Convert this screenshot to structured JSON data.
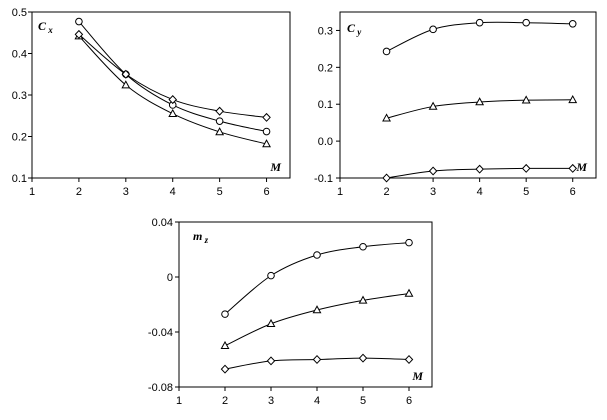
{
  "chart_data": [
    {
      "type": "line",
      "title": "",
      "ylabel": "C",
      "ylabel_sub": "x",
      "xlabel": "M",
      "xlim": [
        1,
        6.5
      ],
      "ylim": [
        0.1,
        0.5
      ],
      "xticks": [
        "1",
        "2",
        "3",
        "4",
        "5",
        "6"
      ],
      "yticks": [
        "0.1",
        "0.2",
        "0.3",
        "0.4",
        "0.5"
      ],
      "grid": false,
      "series": [
        {
          "marker": "circle",
          "x": [
            2,
            3,
            4,
            5,
            6
          ],
          "y": [
            0.477,
            0.35,
            0.276,
            0.237,
            0.212
          ]
        },
        {
          "marker": "triangle",
          "x": [
            2,
            3,
            4,
            5,
            6
          ],
          "y": [
            0.442,
            0.324,
            0.255,
            0.211,
            0.182
          ]
        },
        {
          "marker": "diamond",
          "x": [
            2,
            3,
            4,
            5,
            6
          ],
          "y": [
            0.446,
            0.35,
            0.289,
            0.261,
            0.246
          ]
        }
      ]
    },
    {
      "type": "line",
      "title": "",
      "ylabel": "C",
      "ylabel_sub": "y",
      "xlabel": "M",
      "xlim": [
        1,
        6.5
      ],
      "ylim": [
        -0.1,
        0.35
      ],
      "xticks": [
        "1",
        "2",
        "3",
        "4",
        "5",
        "6"
      ],
      "yticks": [
        "-0.1",
        "0.0",
        "0.1",
        "0.2",
        "0.3"
      ],
      "grid": false,
      "series": [
        {
          "marker": "circle",
          "x": [
            2,
            3,
            4,
            5,
            6
          ],
          "y": [
            0.243,
            0.303,
            0.321,
            0.321,
            0.318
          ]
        },
        {
          "marker": "triangle",
          "x": [
            2,
            3,
            4,
            5,
            6
          ],
          "y": [
            0.062,
            0.094,
            0.106,
            0.111,
            0.112
          ]
        },
        {
          "marker": "diamond",
          "x": [
            2,
            3,
            4,
            5,
            6
          ],
          "y": [
            -0.1,
            -0.081,
            -0.076,
            -0.074,
            -0.074
          ]
        }
      ]
    },
    {
      "type": "line",
      "title": "",
      "ylabel": "m",
      "ylabel_sub": "z",
      "xlabel": "M",
      "xlim": [
        1,
        6.5
      ],
      "ylim": [
        -0.08,
        0.04
      ],
      "xticks": [
        "1",
        "2",
        "3",
        "4",
        "5",
        "6"
      ],
      "yticks": [
        "-0.08",
        "-0.04",
        "0",
        "0.04"
      ],
      "grid": false,
      "series": [
        {
          "marker": "circle",
          "x": [
            2,
            3,
            4,
            5,
            6
          ],
          "y": [
            -0.027,
            0.001,
            0.016,
            0.022,
            0.025
          ]
        },
        {
          "marker": "triangle",
          "x": [
            2,
            3,
            4,
            5,
            6
          ],
          "y": [
            -0.05,
            -0.034,
            -0.024,
            -0.017,
            -0.012
          ]
        },
        {
          "marker": "diamond",
          "x": [
            2,
            3,
            4,
            5,
            6
          ],
          "y": [
            -0.067,
            -0.061,
            -0.06,
            -0.059,
            -0.06
          ]
        }
      ]
    }
  ]
}
